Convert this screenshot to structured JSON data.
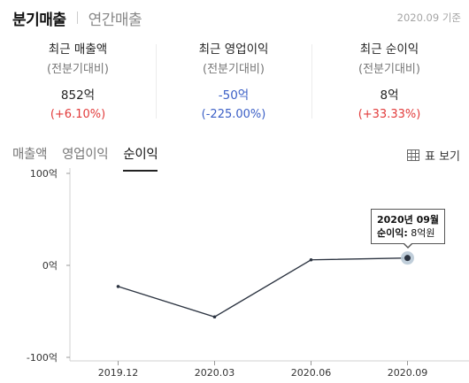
{
  "header": {
    "tabs": [
      {
        "label": "분기매출",
        "active": true
      },
      {
        "label": "연간매출",
        "active": false
      }
    ],
    "base_date": "2020.09 기준"
  },
  "summary": [
    {
      "title": "최근 매출액",
      "sub": "(전분기대비)",
      "value": "852억",
      "change": "(+6.10%)",
      "direction": "up"
    },
    {
      "title": "최근 영업이익",
      "sub": "(전분기대비)",
      "value": "-50억",
      "change": "(-225.00%)",
      "direction": "down"
    },
    {
      "title": "최근 순이익",
      "sub": "(전분기대비)",
      "value": "8억",
      "change": "(+33.33%)",
      "direction": "up"
    }
  ],
  "sub_tabs": [
    {
      "label": "매출액",
      "active": false
    },
    {
      "label": "영업이익",
      "active": false
    },
    {
      "label": "순이익",
      "active": true
    }
  ],
  "table_view": {
    "label": "표 보기",
    "icon": "table-grid-icon"
  },
  "tooltip": {
    "date": "2020년 09월",
    "key": "순이익:",
    "value": "8억원"
  },
  "colors": {
    "up": "#e23b3b",
    "down": "#3b5fc6",
    "line": "#2b3340",
    "highlight": "#b9c9d6"
  },
  "chart_data": {
    "type": "line",
    "categories": [
      "2019.12",
      "2020.03",
      "2020.06",
      "2020.09"
    ],
    "series": [
      {
        "values": [
          -23,
          -56,
          6,
          8
        ]
      }
    ],
    "y_ticks": [
      {
        "value": 100,
        "label": "100억"
      },
      {
        "value": 0,
        "label": "0억"
      },
      {
        "value": -100,
        "label": "-100억"
      }
    ],
    "ylim": [
      -100,
      100
    ],
    "highlight_index": 3,
    "grid": false
  }
}
